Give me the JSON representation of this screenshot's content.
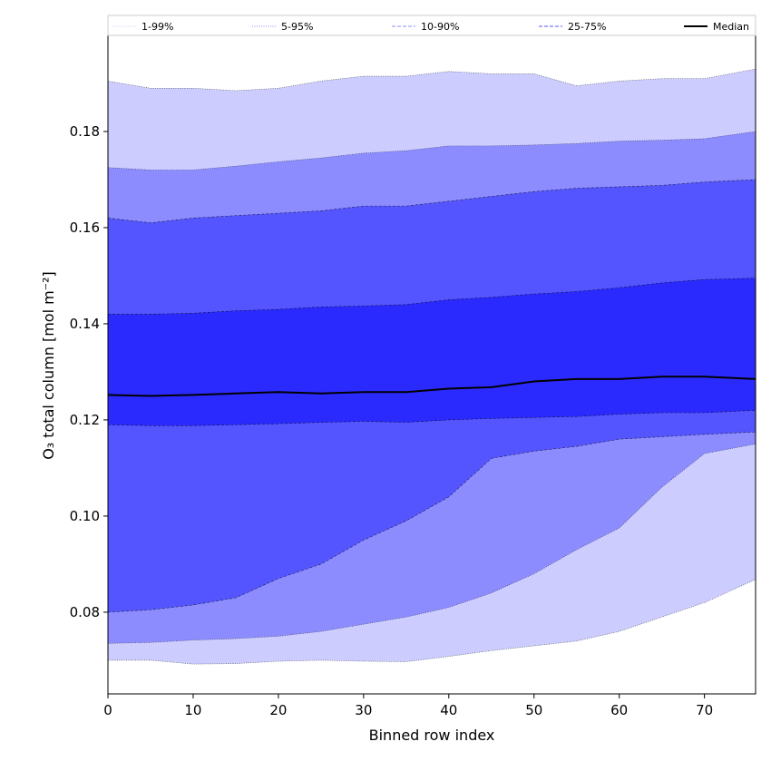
{
  "chart_data": {
    "type": "area",
    "title": "",
    "xlabel": "Binned row index",
    "ylabel": "O₃ total column [mol m⁻²]",
    "xlim": [
      0,
      76
    ],
    "ylim": [
      0.063,
      0.2
    ],
    "xticks": [
      0,
      10,
      20,
      30,
      40,
      50,
      60,
      70
    ],
    "yticks": [
      0.08,
      0.1,
      0.12,
      0.14,
      0.16,
      0.18
    ],
    "ytick_labels": [
      "0.08",
      "0.10",
      "0.12",
      "0.14",
      "0.16",
      "0.18"
    ],
    "legend_position": "top, spanning full width",
    "x": [
      0,
      5,
      10,
      15,
      20,
      25,
      30,
      35,
      40,
      45,
      50,
      55,
      60,
      65,
      70,
      76
    ],
    "bands": [
      {
        "name": "1-99%",
        "color": "#ccccff",
        "line_color": "#000000",
        "lower": [
          0.07,
          0.07,
          0.0692,
          0.0693,
          0.0698,
          0.07,
          0.0698,
          0.0697,
          0.0708,
          0.072,
          0.073,
          0.074,
          0.076,
          0.079,
          0.082,
          0.0868
        ],
        "upper": [
          0.1905,
          0.189,
          0.189,
          0.1885,
          0.189,
          0.1905,
          0.1915,
          0.1915,
          0.1925,
          0.192,
          0.192,
          0.1895,
          0.1905,
          0.191,
          0.191,
          0.193
        ]
      },
      {
        "name": "5-95%",
        "color": "#8c8cff",
        "line_color": "#000000",
        "lower": [
          0.0735,
          0.0737,
          0.0742,
          0.0745,
          0.075,
          0.076,
          0.0775,
          0.079,
          0.081,
          0.084,
          0.088,
          0.093,
          0.0975,
          0.106,
          0.113,
          0.115
        ],
        "upper": [
          0.1725,
          0.172,
          0.172,
          0.1728,
          0.1737,
          0.1745,
          0.1755,
          0.176,
          0.177,
          0.177,
          0.1772,
          0.1775,
          0.178,
          0.1782,
          0.1785,
          0.18
        ]
      },
      {
        "name": "10-90%",
        "color": "#5555ff",
        "line_color": "#000000",
        "lower": [
          0.08,
          0.0805,
          0.0815,
          0.083,
          0.087,
          0.09,
          0.095,
          0.099,
          0.104,
          0.112,
          0.1135,
          0.1145,
          0.116,
          0.1165,
          0.117,
          0.1175
        ],
        "upper": [
          0.162,
          0.161,
          0.162,
          0.1625,
          0.163,
          0.1635,
          0.1645,
          0.1645,
          0.1655,
          0.1665,
          0.1675,
          0.1682,
          0.1685,
          0.1688,
          0.1695,
          0.17
        ]
      },
      {
        "name": "25-75%",
        "color": "#2a2aff",
        "line_color": "#000000",
        "lower": [
          0.119,
          0.1188,
          0.1188,
          0.119,
          0.1192,
          0.1195,
          0.1197,
          0.1195,
          0.12,
          0.1203,
          0.1205,
          0.1207,
          0.1212,
          0.1215,
          0.1215,
          0.122
        ],
        "upper": [
          0.142,
          0.142,
          0.1422,
          0.1427,
          0.143,
          0.1435,
          0.1437,
          0.144,
          0.145,
          0.1455,
          0.1462,
          0.1467,
          0.1475,
          0.1485,
          0.1492,
          0.1495
        ]
      }
    ],
    "median": {
      "name": "Median",
      "color": "#000000",
      "values": [
        0.1252,
        0.125,
        0.1252,
        0.1255,
        0.1258,
        0.1255,
        0.1258,
        0.1258,
        0.1265,
        0.1268,
        0.128,
        0.1285,
        0.1285,
        0.129,
        0.129,
        0.1285
      ]
    },
    "legend": [
      {
        "label": "1-99%",
        "style": "dotted",
        "color": "#ccccff"
      },
      {
        "label": "5-95%",
        "style": "dotted",
        "color": "#8c8cff"
      },
      {
        "label": "10-90%",
        "style": "dashed",
        "color": "#8c8cff"
      },
      {
        "label": "25-75%",
        "style": "dashed",
        "color": "#5555ff"
      },
      {
        "label": "Median",
        "style": "solid",
        "color": "#000000"
      }
    ]
  }
}
